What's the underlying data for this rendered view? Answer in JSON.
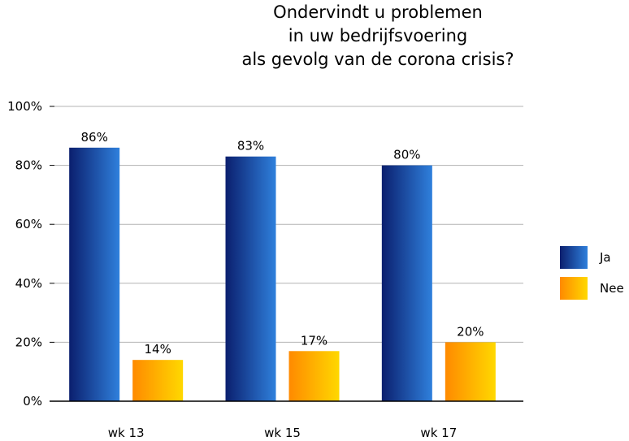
{
  "chart_data": {
    "type": "bar",
    "title_lines": [
      "Ondervindt u problemen",
      "in uw bedrijfsvoering",
      "als gevolg van de corona crisis?"
    ],
    "categories": [
      "wk 13",
      "wk 15",
      "wk 17"
    ],
    "series": [
      {
        "name": "Ja",
        "values": [
          86,
          83,
          80
        ],
        "labels": [
          "86%",
          "83%",
          "80%"
        ],
        "colors": [
          "#0b1f6e",
          "#2f80dc"
        ]
      },
      {
        "name": "Nee",
        "values": [
          14,
          17,
          20
        ],
        "labels": [
          "14%",
          "17%",
          "20%"
        ],
        "colors": [
          "#ff8a00",
          "#ffd800"
        ]
      }
    ],
    "ylim": [
      0,
      100
    ],
    "yticks": [
      0,
      20,
      40,
      60,
      80,
      100
    ],
    "ytick_labels": [
      "0%",
      "20%",
      "40%",
      "60%",
      "80%",
      "100%"
    ],
    "grid": true,
    "legend_position": "right"
  }
}
